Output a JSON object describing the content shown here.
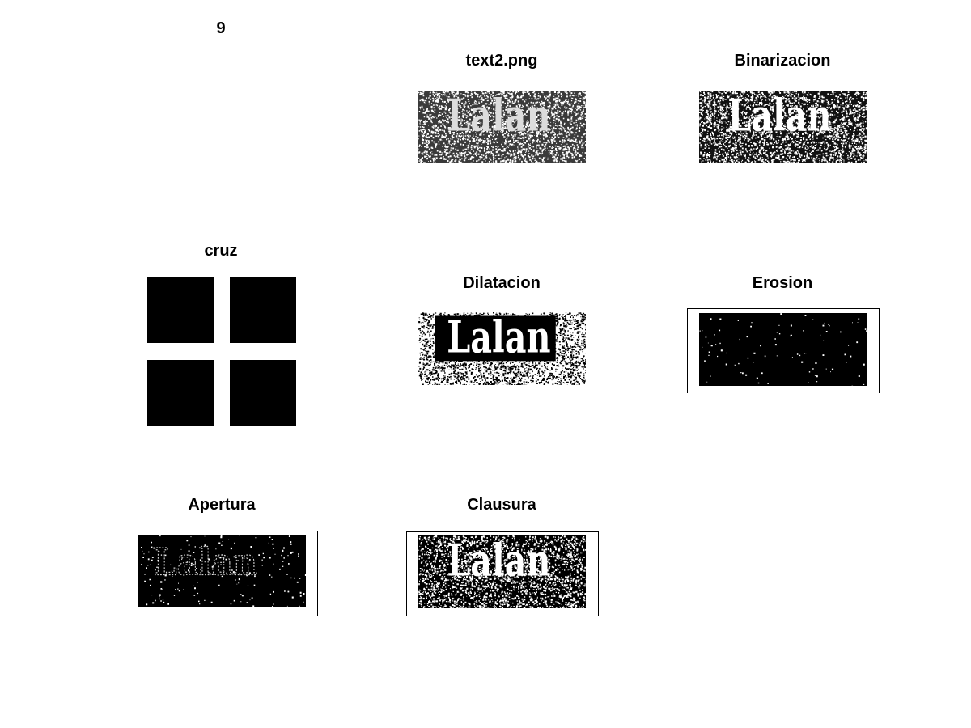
{
  "figure_number": "9",
  "panels": {
    "original": {
      "title": "text2.png",
      "image_text": "Lalan"
    },
    "binarized": {
      "title": "Binarizacion",
      "image_text": "Lalan"
    },
    "structuring_element": {
      "title": "cruz"
    },
    "dilation": {
      "title": "Dilatacion",
      "image_text": "Lalan"
    },
    "erosion": {
      "title": "Erosion"
    },
    "opening": {
      "title": "Apertura",
      "image_text": "Lalan"
    },
    "closing": {
      "title": "Clausura",
      "image_text": "Lalan"
    }
  }
}
